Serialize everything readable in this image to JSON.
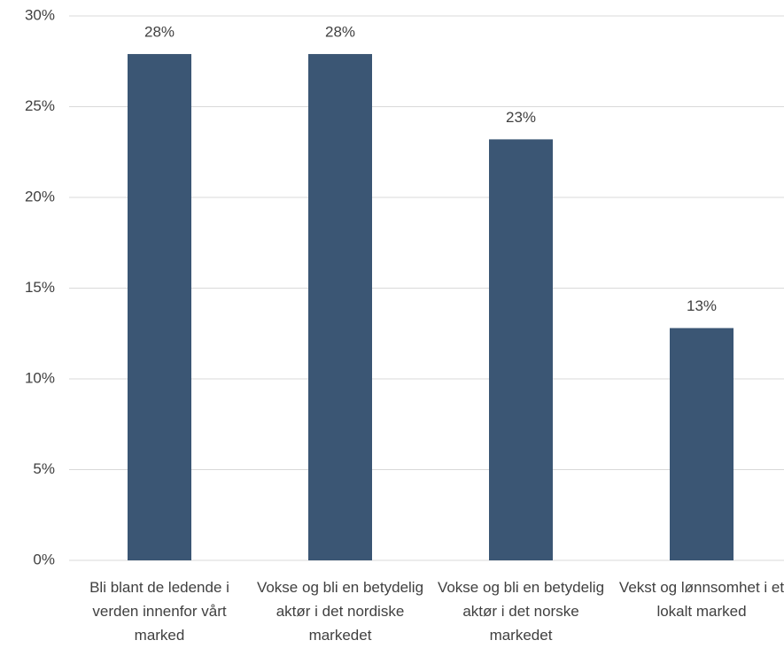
{
  "chart_data": {
    "type": "bar",
    "categories": [
      "Bli blant de ledende i verden innenfor vårt marked",
      "Vokse og bli en betydelig aktør i det nordiske markedet",
      "Vokse og bli en betydelig aktør i det norske markedet",
      "Vekst og lønnsomhet i et lokalt marked"
    ],
    "values": [
      27.9,
      27.9,
      23.2,
      12.8
    ],
    "value_labels": [
      "28%",
      "28%",
      "23%",
      "13%"
    ],
    "color": "#3b5674",
    "ylim": [
      0,
      30
    ],
    "yticks": [
      {
        "value": 0,
        "label": "0%"
      },
      {
        "value": 5,
        "label": "5%"
      },
      {
        "value": 10,
        "label": "10%"
      },
      {
        "value": 15,
        "label": "15%"
      },
      {
        "value": 20,
        "label": "20%"
      },
      {
        "value": 25,
        "label": "25%"
      },
      {
        "value": 30,
        "label": "30%"
      }
    ],
    "grid": true
  }
}
